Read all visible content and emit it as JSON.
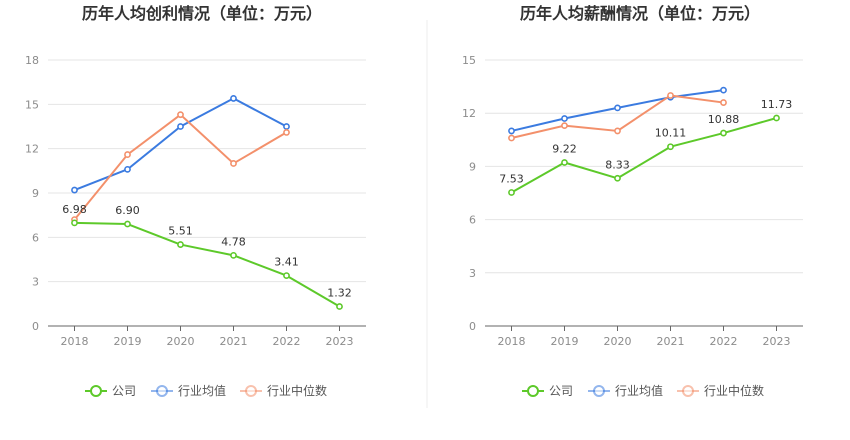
{
  "colors": {
    "company": "#5dc92a",
    "industry_avg": "#3b7be0",
    "industry_median": "#f3906b"
  },
  "legend": [
    "公司",
    "行业均值",
    "行业中位数"
  ],
  "chart_data": [
    {
      "type": "line",
      "title": "历年人均创利情况（单位：万元）",
      "categories": [
        "2018",
        "2019",
        "2020",
        "2021",
        "2022",
        "2023"
      ],
      "ylim": [
        0,
        18
      ],
      "yticks": [
        0,
        3,
        6,
        9,
        12,
        15,
        18
      ],
      "ytick_labels": [
        "0",
        "3",
        "6",
        "9",
        "12",
        "15",
        "18"
      ],
      "grid": true,
      "legend_position": "bottom",
      "series": [
        {
          "name": "公司",
          "values": [
            6.98,
            6.9,
            5.51,
            4.78,
            3.41,
            1.32
          ],
          "labels": [
            "6.98",
            "6.90",
            "5.51",
            "4.78",
            "3.41",
            "1.32"
          ]
        },
        {
          "name": "行业均值",
          "values": [
            9.2,
            10.6,
            13.5,
            15.4,
            13.5,
            null
          ]
        },
        {
          "name": "行业中位数",
          "values": [
            7.2,
            11.6,
            14.3,
            11.0,
            13.1,
            null
          ]
        }
      ]
    },
    {
      "type": "line",
      "title": "历年人均薪酬情况（单位：万元）",
      "categories": [
        "2018",
        "2019",
        "2020",
        "2021",
        "2022",
        "2023"
      ],
      "ylim": [
        0,
        15
      ],
      "yticks": [
        0,
        3,
        6,
        9,
        12,
        15
      ],
      "ytick_labels": [
        "0",
        "3",
        "6",
        "9",
        "12",
        "15"
      ],
      "grid": true,
      "legend_position": "bottom",
      "series": [
        {
          "name": "公司",
          "values": [
            7.53,
            9.22,
            8.33,
            10.11,
            10.88,
            11.73
          ],
          "labels": [
            "7.53",
            "9.22",
            "8.33",
            "10.11",
            "10.88",
            "11.73"
          ]
        },
        {
          "name": "行业均值",
          "values": [
            11.0,
            11.7,
            12.3,
            12.9,
            13.3,
            null
          ]
        },
        {
          "name": "行业中位数",
          "values": [
            10.6,
            11.3,
            11.0,
            13.0,
            12.6,
            null
          ]
        }
      ]
    }
  ]
}
